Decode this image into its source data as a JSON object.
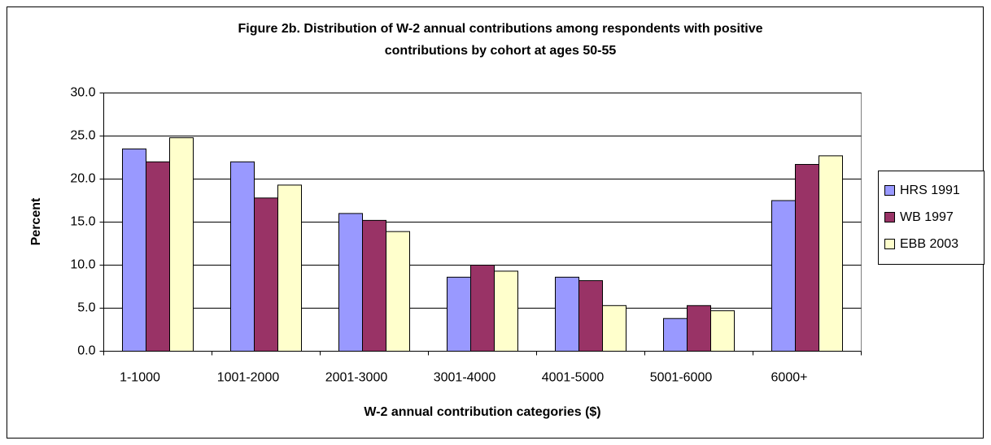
{
  "chart_data": {
    "type": "bar",
    "title": [
      "Figure 2b. Distribution of W-2 annual contributions among respondents with positive",
      "contributions by cohort at ages 50-55"
    ],
    "x_label": "W-2 annual contribution categories ($)",
    "y_label": "Percent",
    "categories": [
      "1-1000",
      "1001-2000",
      "2001-3000",
      "3001-4000",
      "4001-5000",
      "5001-6000",
      "6000+"
    ],
    "series": [
      {
        "name": "HRS 1991",
        "color": "#9999ff",
        "values": [
          23.5,
          22.0,
          16.0,
          8.6,
          8.6,
          3.8,
          17.5
        ]
      },
      {
        "name": "WB 1997",
        "color": "#993366",
        "values": [
          22.0,
          17.8,
          15.2,
          10.0,
          8.2,
          5.3,
          21.7
        ]
      },
      {
        "name": "EBB 2003",
        "color": "#ffffcc",
        "values": [
          24.8,
          19.3,
          13.9,
          9.3,
          5.3,
          4.7,
          22.7
        ]
      }
    ],
    "ylim": [
      0,
      30
    ],
    "yticks": [
      {
        "value": 0,
        "label": "0.0"
      },
      {
        "value": 5,
        "label": "5.0"
      },
      {
        "value": 10,
        "label": "10.0"
      },
      {
        "value": 15,
        "label": "15.0"
      },
      {
        "value": 20,
        "label": "20.0"
      },
      {
        "value": 25,
        "label": "25.0"
      },
      {
        "value": 30,
        "label": "30.0"
      }
    ],
    "grid": true,
    "legend": "right"
  }
}
